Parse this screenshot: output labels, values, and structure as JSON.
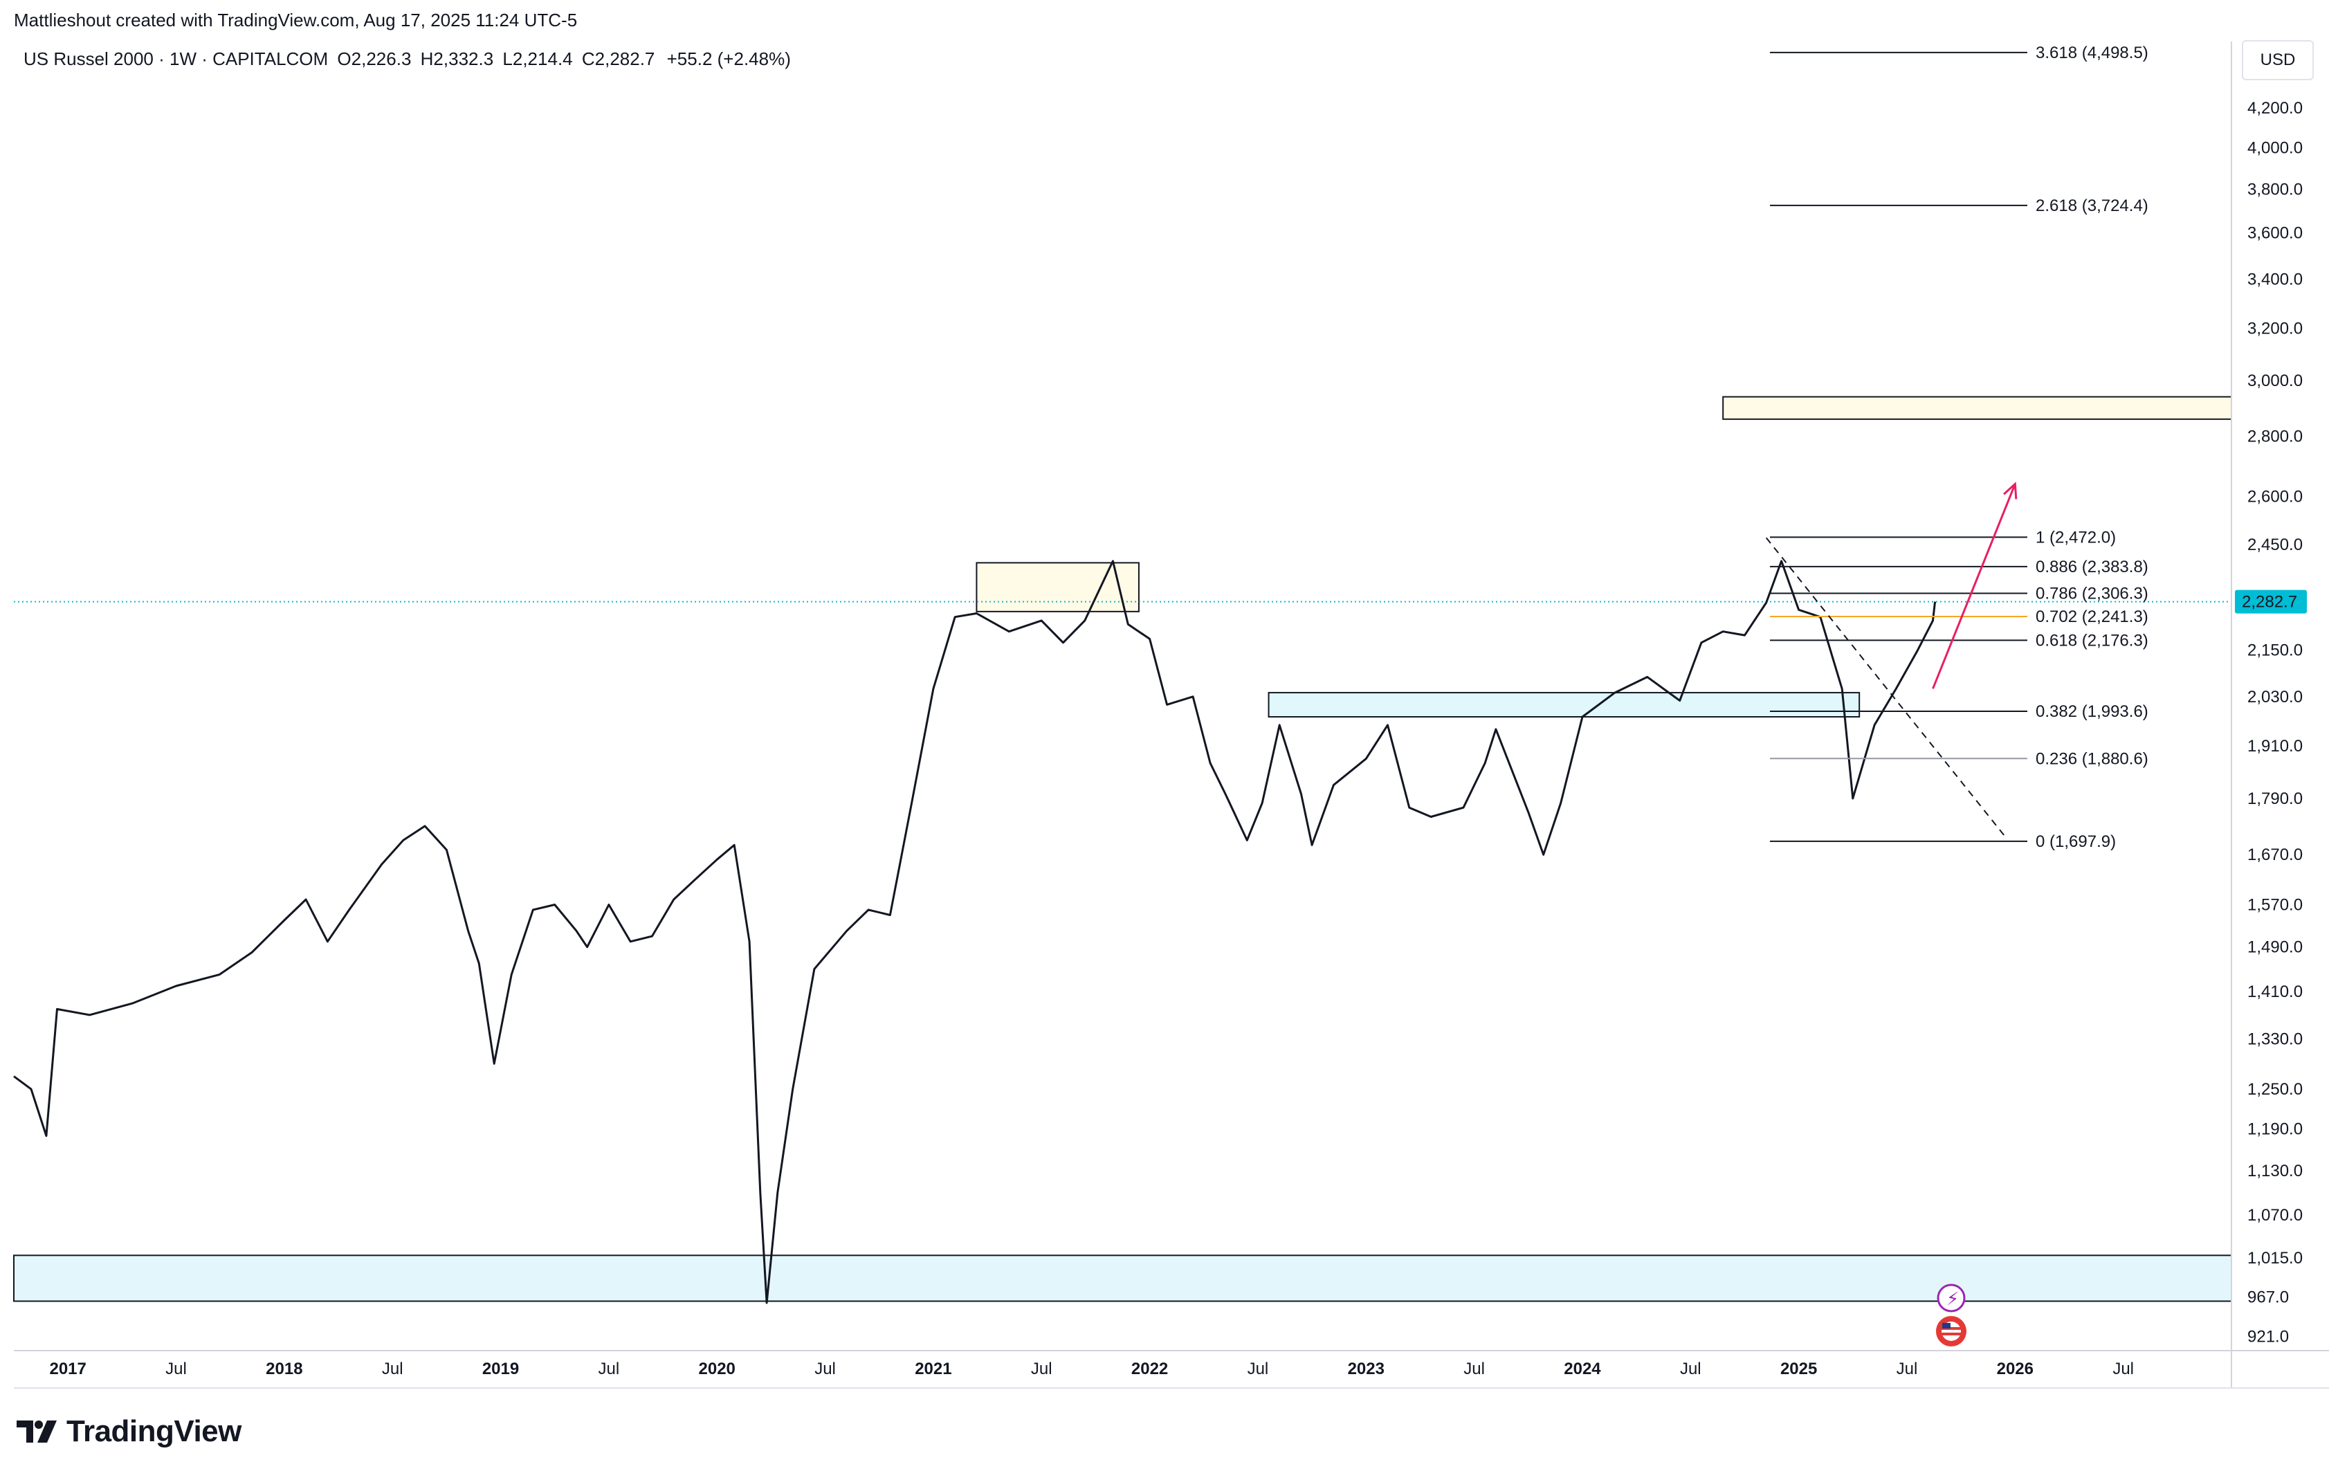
{
  "header": {
    "attribution": "Mattlieshout created with TradingView.com, Aug 17, 2025 11:24 UTC-5",
    "symbol": "US Russel 2000 · 1W · CAPITALCOM",
    "open_label": "O",
    "open": "2,226.3",
    "high_label": "H",
    "high": "2,332.3",
    "low_label": "L",
    "low": "2,214.4",
    "close_label": "C",
    "close": "2,282.7",
    "change": "+55.2 (+2.48%)"
  },
  "price_scale": {
    "currency": "USD",
    "current_price_label": "2,282.7",
    "current_price": 2282.7
  },
  "brand": {
    "name": "TradingView"
  },
  "chart_data": {
    "type": "line",
    "title": "US Russel 2000 · 1W · CAPITALCOM",
    "y_scale": "log",
    "ylim": [
      905,
      4560
    ],
    "xlim": [
      2016.75,
      2027.0
    ],
    "x_ticks": [
      {
        "t": 2017.0,
        "label": "2017",
        "bold": true
      },
      {
        "t": 2017.5,
        "label": "Jul",
        "bold": false
      },
      {
        "t": 2018.0,
        "label": "2018",
        "bold": true
      },
      {
        "t": 2018.5,
        "label": "Jul",
        "bold": false
      },
      {
        "t": 2019.0,
        "label": "2019",
        "bold": true
      },
      {
        "t": 2019.5,
        "label": "Jul",
        "bold": false
      },
      {
        "t": 2020.0,
        "label": "2020",
        "bold": true
      },
      {
        "t": 2020.5,
        "label": "Jul",
        "bold": false
      },
      {
        "t": 2021.0,
        "label": "2021",
        "bold": true
      },
      {
        "t": 2021.5,
        "label": "Jul",
        "bold": false
      },
      {
        "t": 2022.0,
        "label": "2022",
        "bold": true
      },
      {
        "t": 2022.5,
        "label": "Jul",
        "bold": false
      },
      {
        "t": 2023.0,
        "label": "2023",
        "bold": true
      },
      {
        "t": 2023.5,
        "label": "Jul",
        "bold": false
      },
      {
        "t": 2024.0,
        "label": "2024",
        "bold": true
      },
      {
        "t": 2024.5,
        "label": "Jul",
        "bold": false
      },
      {
        "t": 2025.0,
        "label": "2025",
        "bold": true
      },
      {
        "t": 2025.5,
        "label": "Jul",
        "bold": false
      },
      {
        "t": 2026.0,
        "label": "2026",
        "bold": true
      },
      {
        "t": 2026.5,
        "label": "Jul",
        "bold": false
      }
    ],
    "y_ticks": [
      {
        "v": 4200,
        "label": "4,200.0"
      },
      {
        "v": 4000,
        "label": "4,000.0"
      },
      {
        "v": 3800,
        "label": "3,800.0"
      },
      {
        "v": 3600,
        "label": "3,600.0"
      },
      {
        "v": 3400,
        "label": "3,400.0"
      },
      {
        "v": 3200,
        "label": "3,200.0"
      },
      {
        "v": 3000,
        "label": "3,000.0"
      },
      {
        "v": 2800,
        "label": "2,800.0"
      },
      {
        "v": 2600,
        "label": "2,600.0"
      },
      {
        "v": 2450,
        "label": "2,450.0"
      },
      {
        "v": 2150,
        "label": "2,150.0"
      },
      {
        "v": 2030,
        "label": "2,030.0"
      },
      {
        "v": 1910,
        "label": "1,910.0"
      },
      {
        "v": 1790,
        "label": "1,790.0"
      },
      {
        "v": 1670,
        "label": "1,670.0"
      },
      {
        "v": 1570,
        "label": "1,570.0"
      },
      {
        "v": 1490,
        "label": "1,490.0"
      },
      {
        "v": 1410,
        "label": "1,410.0"
      },
      {
        "v": 1330,
        "label": "1,330.0"
      },
      {
        "v": 1250,
        "label": "1,250.0"
      },
      {
        "v": 1190,
        "label": "1,190.0"
      },
      {
        "v": 1130,
        "label": "1,130.0"
      },
      {
        "v": 1070,
        "label": "1,070.0"
      },
      {
        "v": 1015,
        "label": "1,015.0"
      },
      {
        "v": 967,
        "label": "967.0"
      },
      {
        "v": 921,
        "label": "921.0"
      }
    ],
    "series": [
      {
        "points": [
          [
            2016.75,
            1270
          ],
          [
            2016.83,
            1250
          ],
          [
            2016.9,
            1180
          ],
          [
            2016.95,
            1380
          ],
          [
            2017.1,
            1370
          ],
          [
            2017.3,
            1390
          ],
          [
            2017.5,
            1420
          ],
          [
            2017.7,
            1440
          ],
          [
            2017.85,
            1480
          ],
          [
            2018.0,
            1540
          ],
          [
            2018.1,
            1580
          ],
          [
            2018.2,
            1500
          ],
          [
            2018.3,
            1560
          ],
          [
            2018.45,
            1650
          ],
          [
            2018.55,
            1700
          ],
          [
            2018.65,
            1730
          ],
          [
            2018.75,
            1680
          ],
          [
            2018.85,
            1520
          ],
          [
            2018.9,
            1460
          ],
          [
            2018.97,
            1290
          ],
          [
            2019.05,
            1440
          ],
          [
            2019.15,
            1560
          ],
          [
            2019.25,
            1570
          ],
          [
            2019.35,
            1520
          ],
          [
            2019.4,
            1490
          ],
          [
            2019.5,
            1570
          ],
          [
            2019.6,
            1500
          ],
          [
            2019.7,
            1510
          ],
          [
            2019.8,
            1580
          ],
          [
            2019.9,
            1620
          ],
          [
            2020.0,
            1660
          ],
          [
            2020.08,
            1690
          ],
          [
            2020.15,
            1500
          ],
          [
            2020.2,
            1100
          ],
          [
            2020.23,
            960
          ],
          [
            2020.28,
            1100
          ],
          [
            2020.35,
            1250
          ],
          [
            2020.45,
            1450
          ],
          [
            2020.6,
            1520
          ],
          [
            2020.7,
            1560
          ],
          [
            2020.8,
            1550
          ],
          [
            2020.9,
            1780
          ],
          [
            2021.0,
            2050
          ],
          [
            2021.1,
            2240
          ],
          [
            2021.2,
            2250
          ],
          [
            2021.35,
            2200
          ],
          [
            2021.5,
            2230
          ],
          [
            2021.6,
            2170
          ],
          [
            2021.7,
            2230
          ],
          [
            2021.83,
            2400
          ],
          [
            2021.9,
            2220
          ],
          [
            2022.0,
            2180
          ],
          [
            2022.08,
            2010
          ],
          [
            2022.2,
            2030
          ],
          [
            2022.28,
            1870
          ],
          [
            2022.35,
            1800
          ],
          [
            2022.45,
            1700
          ],
          [
            2022.52,
            1780
          ],
          [
            2022.6,
            1960
          ],
          [
            2022.7,
            1800
          ],
          [
            2022.75,
            1690
          ],
          [
            2022.85,
            1820
          ],
          [
            2023.0,
            1880
          ],
          [
            2023.1,
            1960
          ],
          [
            2023.2,
            1770
          ],
          [
            2023.3,
            1750
          ],
          [
            2023.45,
            1770
          ],
          [
            2023.55,
            1870
          ],
          [
            2023.6,
            1950
          ],
          [
            2023.75,
            1760
          ],
          [
            2023.82,
            1670
          ],
          [
            2023.9,
            1780
          ],
          [
            2024.0,
            1980
          ],
          [
            2024.15,
            2040
          ],
          [
            2024.3,
            2080
          ],
          [
            2024.45,
            2020
          ],
          [
            2024.55,
            2170
          ],
          [
            2024.65,
            2200
          ],
          [
            2024.75,
            2190
          ],
          [
            2024.85,
            2280
          ],
          [
            2024.92,
            2400
          ],
          [
            2025.0,
            2260
          ],
          [
            2025.1,
            2240
          ],
          [
            2025.2,
            2050
          ],
          [
            2025.25,
            1790
          ],
          [
            2025.35,
            1960
          ],
          [
            2025.45,
            2050
          ],
          [
            2025.55,
            2150
          ],
          [
            2025.62,
            2230
          ],
          [
            2025.63,
            2282.7
          ]
        ]
      }
    ],
    "annotations": {
      "fib_levels": [
        {
          "ratio": "3.618",
          "value": 4498.5,
          "text": "3.618 (4,498.5)",
          "color": "#131722"
        },
        {
          "ratio": "2.618",
          "value": 3724.4,
          "text": "2.618 (3,724.4)",
          "color": "#131722"
        },
        {
          "ratio": "1",
          "value": 2472.0,
          "text": "1 (2,472.0)",
          "color": "#131722"
        },
        {
          "ratio": "0.886",
          "value": 2383.8,
          "text": "0.886 (2,383.8)",
          "color": "#131722"
        },
        {
          "ratio": "0.786",
          "value": 2306.3,
          "text": "0.786 (2,306.3)",
          "color": "#131722"
        },
        {
          "ratio": "0.702",
          "value": 2241.3,
          "text": "0.702 (2,241.3)",
          "color": "#f5a623"
        },
        {
          "ratio": "0.618",
          "value": 2176.3,
          "text": "0.618 (2,176.3)",
          "color": "#131722"
        },
        {
          "ratio": "0.382",
          "value": 1993.6,
          "text": "0.382 (1,993.6)",
          "color": "#131722"
        },
        {
          "ratio": "0.236",
          "value": 1880.6,
          "text": "0.236 (1,880.6)",
          "color": "#9598a1"
        },
        {
          "ratio": "0",
          "value": 1697.9,
          "text": "0 (1,697.9)",
          "color": "#131722"
        }
      ],
      "zones": [
        {
          "kind": "supply",
          "t0": 2021.2,
          "t1": 2021.95,
          "v_low": 2255,
          "v_high": 2395,
          "fill": "#fffbe6"
        },
        {
          "kind": "support",
          "t0": 2022.55,
          "t1": 2025.28,
          "v_low": 1980,
          "v_high": 2040,
          "fill": "#e0f7fb"
        },
        {
          "kind": "demand",
          "t0": 2016.75,
          "t1": 2027.0,
          "v_low": 962,
          "v_high": 1018,
          "fill": "#e3f6fc"
        },
        {
          "kind": "target",
          "t0": 2024.65,
          "t1": 2027.0,
          "v_low": 2860,
          "v_high": 2940,
          "fill": "#fffbe6"
        }
      ],
      "trend_arrow": {
        "from": [
          2025.62,
          2050
        ],
        "to": [
          2026.0,
          2640
        ],
        "color": "#e91e63"
      },
      "dashed_trendline": {
        "from": [
          2024.85,
          2470
        ],
        "to": [
          2025.95,
          1710
        ],
        "color": "#131722"
      },
      "current_price_line": {
        "value": 2282.7,
        "color": "#00bcd4"
      }
    }
  }
}
